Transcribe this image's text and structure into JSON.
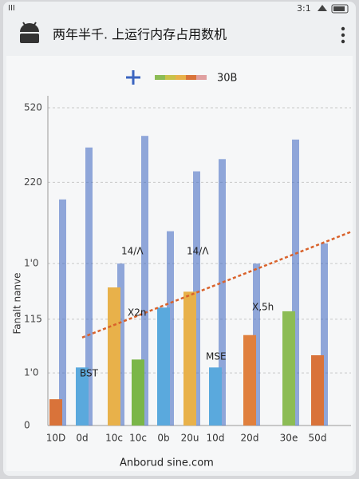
{
  "status_bar": {
    "left": "III",
    "time": "3:1"
  },
  "app_bar": {
    "title": "两年半千. 上运行内存占用数机"
  },
  "chart_data": {
    "type": "bar",
    "legend": {
      "label": "30B",
      "color": "#3a64c0"
    },
    "ylabel": "Fanalt nanve",
    "categories": [
      "10D",
      "0d",
      "10c",
      "10c",
      "0b",
      "20u",
      "10d",
      "20d",
      "30e",
      "50d"
    ],
    "values": [
      43,
      95,
      226,
      108,
      193,
      219,
      95,
      148,
      187,
      115
    ],
    "colors": [
      "#d9733a",
      "#5aa9dd",
      "#e8b14a",
      "#7ab648",
      "#5aa9dd",
      "#e8b14a",
      "#5aa9dd",
      "#e0803e",
      "#8cbc55",
      "#d9733a"
    ],
    "peaks": {
      "color": "#3a64c0",
      "values": [
        370,
        455,
        265,
        474,
        318,
        416,
        436,
        265,
        468,
        298
      ]
    },
    "trend": {
      "color": "#d9622b",
      "values": [
        144,
        317
      ]
    },
    "annotations": [
      "14/Λ",
      "14/Λ",
      "X2n",
      "X,5h",
      "BST",
      "MSE"
    ],
    "ylim": [
      0,
      520
    ],
    "yticks": [
      0,
      {
        "value": 86,
        "label": "1'0"
      },
      {
        "value": 174,
        "label": "115"
      },
      {
        "value": 265,
        "label": "1'0"
      },
      {
        "value": 398,
        "label": "220"
      },
      520
    ],
    "grid": true
  },
  "footer": {
    "text": "Anborud sine.com"
  }
}
